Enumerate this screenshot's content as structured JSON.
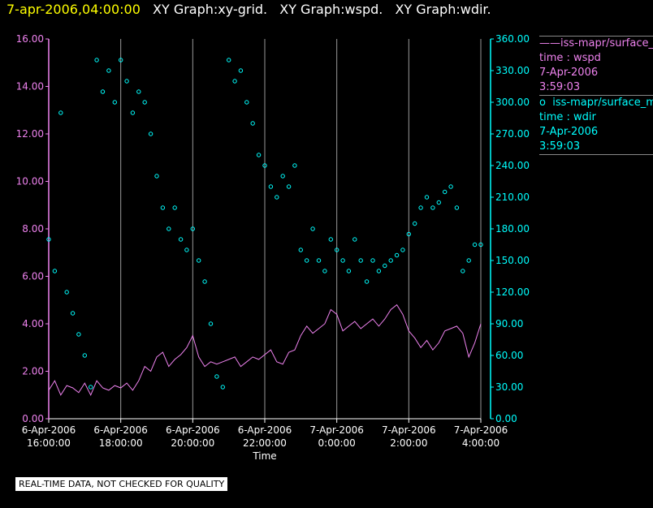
{
  "header": {
    "timestamp": "7-apr-2006,04:00:00",
    "graphs": [
      "XY Graph:xy-grid.",
      "XY Graph:wspd.",
      "XY Graph:wdir."
    ]
  },
  "legend": [
    {
      "symbol": "——",
      "series": "iss-mapr/surface_m",
      "label": "time : wspd",
      "date": "7-Apr-2006",
      "time": "3:59:03"
    },
    {
      "symbol": "o",
      "series": "iss-mapr/surface_m",
      "label": "time : wdir",
      "date": "7-Apr-2006",
      "time": "3:59:03"
    }
  ],
  "footer_badge": "REAL-TIME DATA, NOT CHECKED FOR QUALITY",
  "colors": {
    "wspd": "#ee82ee",
    "wdir": "#00ffff",
    "grid": "#999999",
    "header_timestamp": "#ffff00"
  },
  "chart_data": {
    "type": "line",
    "xlabel": "Time",
    "x_ticks": [
      {
        "date": "6-Apr-2006",
        "time": "16:00:00"
      },
      {
        "date": "6-Apr-2006",
        "time": "18:00:00"
      },
      {
        "date": "6-Apr-2006",
        "time": "20:00:00"
      },
      {
        "date": "6-Apr-2006",
        "time": "22:00:00"
      },
      {
        "date": "7-Apr-2006",
        "time": "0:00:00"
      },
      {
        "date": "7-Apr-2006",
        "time": "2:00:00"
      },
      {
        "date": "7-Apr-2006",
        "time": "4:00:00"
      }
    ],
    "xlim": [
      "2006-04-06 16:00",
      "2006-04-07 04:00"
    ],
    "y_left": {
      "ticks": [
        "0.00",
        "2.00",
        "4.00",
        "6.00",
        "8.00",
        "10.00",
        "12.00",
        "14.00",
        "16.00"
      ],
      "ylim": [
        0,
        16
      ]
    },
    "y_right": {
      "ticks": [
        "0.00",
        "30.00",
        "60.00",
        "90.00",
        "120.00",
        "150.00",
        "180.00",
        "210.00",
        "240.00",
        "270.00",
        "300.00",
        "330.00",
        "360.00"
      ],
      "ylim": [
        0,
        360
      ]
    },
    "grid": "vertical",
    "series": [
      {
        "key": "wspd",
        "axis": "left",
        "style": "line",
        "points": [
          [
            "16:00",
            1.2
          ],
          [
            "16:10",
            1.6
          ],
          [
            "16:20",
            1.0
          ],
          [
            "16:30",
            1.4
          ],
          [
            "16:40",
            1.3
          ],
          [
            "16:50",
            1.1
          ],
          [
            "17:00",
            1.5
          ],
          [
            "17:10",
            1.0
          ],
          [
            "17:20",
            1.6
          ],
          [
            "17:30",
            1.3
          ],
          [
            "17:40",
            1.2
          ],
          [
            "17:50",
            1.4
          ],
          [
            "18:00",
            1.3
          ],
          [
            "18:10",
            1.5
          ],
          [
            "18:20",
            1.2
          ],
          [
            "18:30",
            1.6
          ],
          [
            "18:40",
            2.2
          ],
          [
            "18:50",
            2.0
          ],
          [
            "19:00",
            2.6
          ],
          [
            "19:10",
            2.8
          ],
          [
            "19:20",
            2.2
          ],
          [
            "19:30",
            2.5
          ],
          [
            "19:40",
            2.7
          ],
          [
            "19:50",
            3.0
          ],
          [
            "20:00",
            3.5
          ],
          [
            "20:10",
            2.6
          ],
          [
            "20:20",
            2.2
          ],
          [
            "20:30",
            2.4
          ],
          [
            "20:40",
            2.3
          ],
          [
            "20:50",
            2.4
          ],
          [
            "21:00",
            2.5
          ],
          [
            "21:10",
            2.6
          ],
          [
            "21:20",
            2.2
          ],
          [
            "21:30",
            2.4
          ],
          [
            "21:40",
            2.6
          ],
          [
            "21:50",
            2.5
          ],
          [
            "22:00",
            2.7
          ],
          [
            "22:10",
            2.9
          ],
          [
            "22:20",
            2.4
          ],
          [
            "22:30",
            2.3
          ],
          [
            "22:40",
            2.8
          ],
          [
            "22:50",
            2.9
          ],
          [
            "23:00",
            3.5
          ],
          [
            "23:10",
            3.9
          ],
          [
            "23:20",
            3.6
          ],
          [
            "23:30",
            3.8
          ],
          [
            "23:40",
            4.0
          ],
          [
            "23:50",
            4.6
          ],
          [
            "00:00",
            4.4
          ],
          [
            "00:10",
            3.7
          ],
          [
            "00:20",
            3.9
          ],
          [
            "00:30",
            4.1
          ],
          [
            "00:40",
            3.8
          ],
          [
            "00:50",
            4.0
          ],
          [
            "01:00",
            4.2
          ],
          [
            "01:10",
            3.9
          ],
          [
            "01:20",
            4.2
          ],
          [
            "01:30",
            4.6
          ],
          [
            "01:40",
            4.8
          ],
          [
            "01:50",
            4.4
          ],
          [
            "02:00",
            3.7
          ],
          [
            "02:10",
            3.4
          ],
          [
            "02:20",
            3.0
          ],
          [
            "02:30",
            3.3
          ],
          [
            "02:40",
            2.9
          ],
          [
            "02:50",
            3.2
          ],
          [
            "03:00",
            3.7
          ],
          [
            "03:10",
            3.8
          ],
          [
            "03:20",
            3.9
          ],
          [
            "03:30",
            3.6
          ],
          [
            "03:40",
            2.6
          ],
          [
            "03:50",
            3.2
          ],
          [
            "04:00",
            4.0
          ]
        ]
      },
      {
        "key": "wdir",
        "axis": "right",
        "style": "scatter",
        "points": [
          [
            "16:00",
            170
          ],
          [
            "16:10",
            140
          ],
          [
            "16:20",
            290
          ],
          [
            "16:30",
            120
          ],
          [
            "16:40",
            100
          ],
          [
            "16:50",
            80
          ],
          [
            "17:00",
            60
          ],
          [
            "17:10",
            30
          ],
          [
            "17:20",
            340
          ],
          [
            "17:30",
            310
          ],
          [
            "17:40",
            330
          ],
          [
            "17:50",
            300
          ],
          [
            "18:00",
            340
          ],
          [
            "18:10",
            320
          ],
          [
            "18:20",
            290
          ],
          [
            "18:30",
            310
          ],
          [
            "18:40",
            300
          ],
          [
            "18:50",
            270
          ],
          [
            "19:00",
            230
          ],
          [
            "19:10",
            200
          ],
          [
            "19:20",
            180
          ],
          [
            "19:30",
            200
          ],
          [
            "19:40",
            170
          ],
          [
            "19:50",
            160
          ],
          [
            "20:00",
            180
          ],
          [
            "20:10",
            150
          ],
          [
            "20:20",
            130
          ],
          [
            "20:30",
            90
          ],
          [
            "20:40",
            40
          ],
          [
            "20:50",
            30
          ],
          [
            "21:00",
            340
          ],
          [
            "21:10",
            320
          ],
          [
            "21:20",
            330
          ],
          [
            "21:30",
            300
          ],
          [
            "21:40",
            280
          ],
          [
            "21:50",
            250
          ],
          [
            "22:00",
            240
          ],
          [
            "22:10",
            220
          ],
          [
            "22:20",
            210
          ],
          [
            "22:30",
            230
          ],
          [
            "22:40",
            220
          ],
          [
            "22:50",
            240
          ],
          [
            "23:00",
            160
          ],
          [
            "23:10",
            150
          ],
          [
            "23:20",
            180
          ],
          [
            "23:30",
            150
          ],
          [
            "23:40",
            140
          ],
          [
            "23:50",
            170
          ],
          [
            "00:00",
            160
          ],
          [
            "00:10",
            150
          ],
          [
            "00:20",
            140
          ],
          [
            "00:30",
            170
          ],
          [
            "00:40",
            150
          ],
          [
            "00:50",
            130
          ],
          [
            "01:00",
            150
          ],
          [
            "01:10",
            140
          ],
          [
            "01:20",
            145
          ],
          [
            "01:30",
            150
          ],
          [
            "01:40",
            155
          ],
          [
            "01:50",
            160
          ],
          [
            "02:00",
            175
          ],
          [
            "02:10",
            185
          ],
          [
            "02:20",
            200
          ],
          [
            "02:30",
            210
          ],
          [
            "02:40",
            200
          ],
          [
            "02:50",
            205
          ],
          [
            "03:00",
            215
          ],
          [
            "03:10",
            220
          ],
          [
            "03:20",
            200
          ],
          [
            "03:30",
            140
          ],
          [
            "03:40",
            150
          ],
          [
            "03:50",
            165
          ],
          [
            "04:00",
            165
          ]
        ]
      }
    ]
  }
}
